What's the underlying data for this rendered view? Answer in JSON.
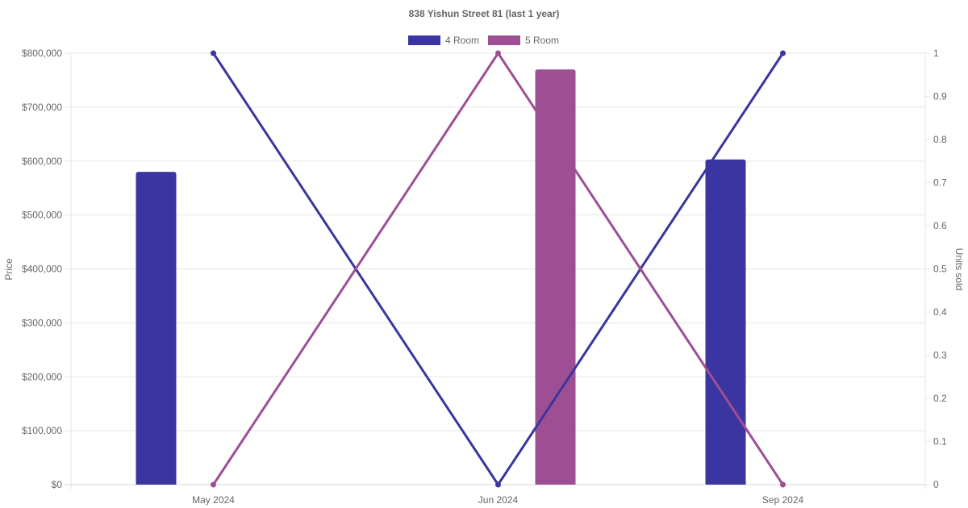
{
  "chart_data": {
    "type": "bar",
    "title": "838 Yishun Street 81 (last 1 year)",
    "categories": [
      "May 2024",
      "Jun 2024",
      "Sep 2024"
    ],
    "y_left": {
      "label": "Price",
      "ylim": [
        0,
        800000
      ],
      "ticks": [
        "$0",
        "$100,000",
        "$200,000",
        "$300,000",
        "$400,000",
        "$500,000",
        "$600,000",
        "$700,000",
        "$800,000"
      ]
    },
    "y_right": {
      "label": "Units sold",
      "ylim": [
        0,
        1
      ],
      "ticks": [
        "0",
        "0.1",
        "0.2",
        "0.3",
        "0.4",
        "0.5",
        "0.6",
        "0.7",
        "0.8",
        "0.9",
        "1"
      ]
    },
    "series": [
      {
        "name": "4 Room",
        "color": "#3a35a0",
        "price": [
          580000,
          null,
          603000
        ],
        "units_sold": [
          1,
          0,
          1
        ]
      },
      {
        "name": "5 Room",
        "color": "#9e4f93",
        "price": [
          null,
          770000,
          null
        ],
        "units_sold": [
          0,
          1,
          0
        ]
      }
    ],
    "legend_position": "top",
    "grid": true
  }
}
